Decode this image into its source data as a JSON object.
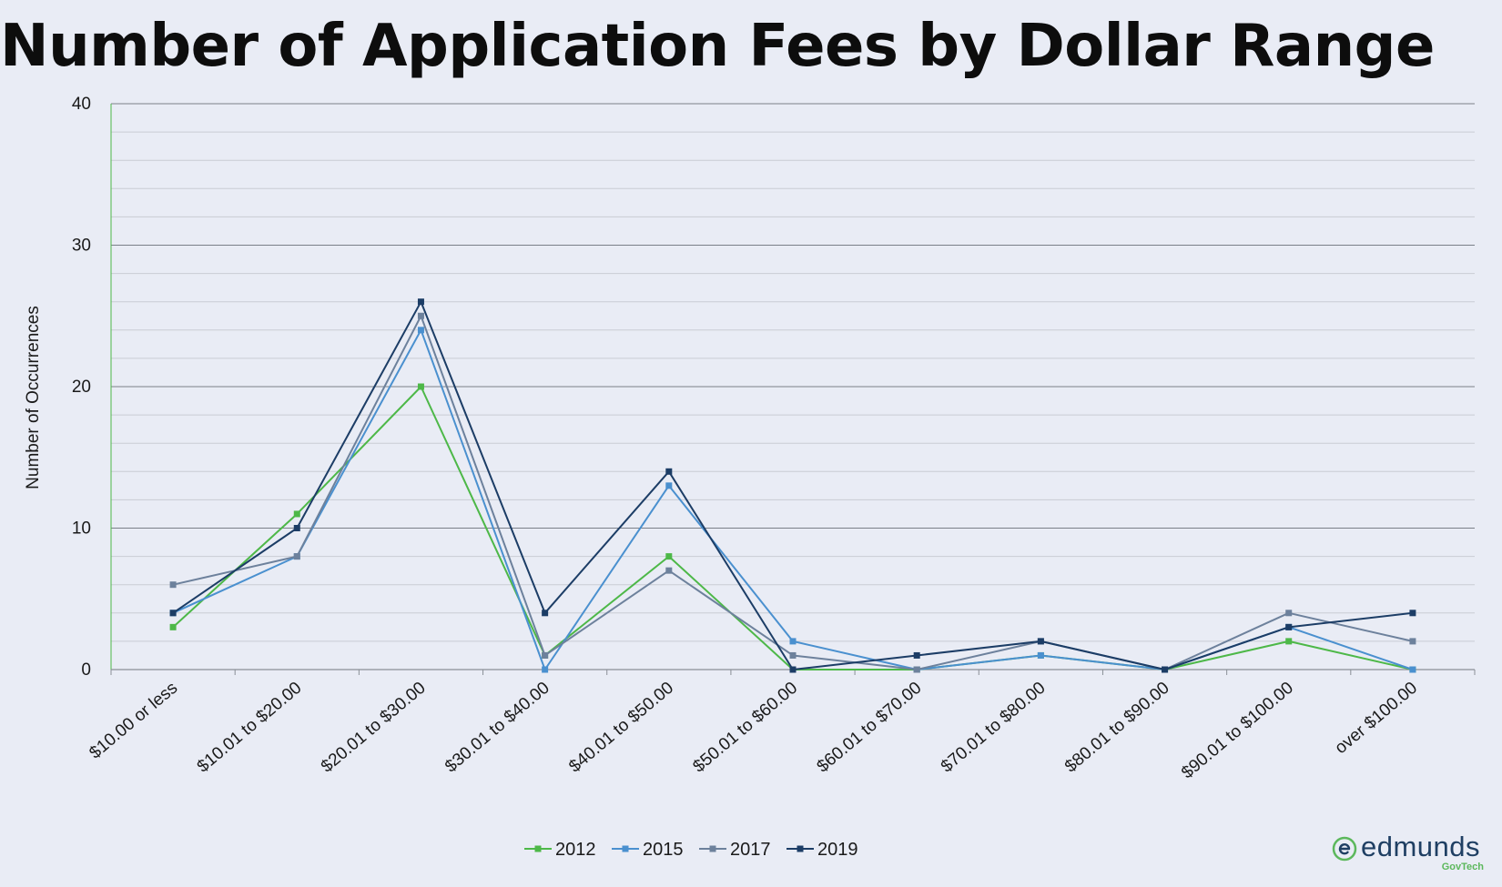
{
  "chart_data": {
    "type": "line",
    "title": "Number of Application Fees by Dollar Range",
    "xlabel": "",
    "ylabel": "Number of Occurrences",
    "ylim": [
      0,
      40
    ],
    "yticks": [
      0,
      10,
      20,
      30,
      40
    ],
    "grid": true,
    "legend_position": "bottom",
    "categories": [
      "$10.00 or less",
      "$10.01 to $20.00",
      "$20.01 to $30.00",
      "$30.01 to $40.00",
      "$40.01 to $50.00",
      "$50.01 to $60.00",
      "$60.01 to $70.00",
      "$70.01 to $80.00",
      "$80.01 to $90.00",
      "$90.01 to $100.00",
      "over $100.00"
    ],
    "series": [
      {
        "name": "2012",
        "color": "#4db848",
        "values": [
          3,
          11,
          20,
          1,
          8,
          0,
          0,
          1,
          0,
          2,
          0
        ]
      },
      {
        "name": "2015",
        "color": "#4a90cf",
        "values": [
          4,
          8,
          24,
          0,
          13,
          2,
          0,
          1,
          0,
          3,
          0
        ]
      },
      {
        "name": "2017",
        "color": "#6d819c",
        "values": [
          6,
          8,
          25,
          1,
          7,
          1,
          0,
          2,
          0,
          4,
          2
        ]
      },
      {
        "name": "2019",
        "color": "#1c3d66",
        "values": [
          4,
          10,
          26,
          4,
          14,
          0,
          1,
          2,
          0,
          3,
          4
        ]
      }
    ]
  },
  "logo": {
    "word": "edmunds",
    "sub": "GovTech"
  }
}
